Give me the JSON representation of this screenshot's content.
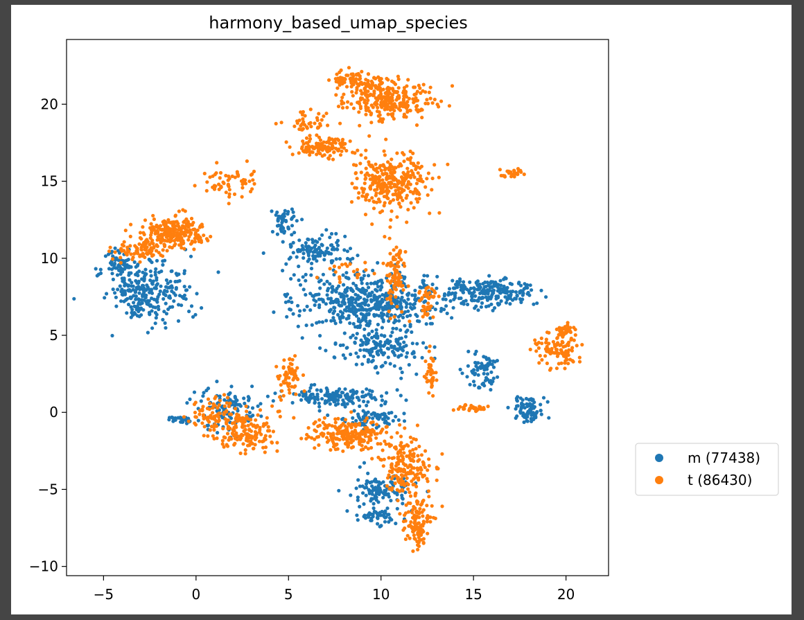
{
  "colors": {
    "background": "#454545",
    "canvas": "#ffffff",
    "series_m": "#1f77b4",
    "series_t": "#ff7f0e"
  },
  "chart_data": {
    "type": "scatter",
    "title": "harmony_based_umap_species",
    "xlabel": "",
    "ylabel": "",
    "xlim": [
      -7,
      22.3
    ],
    "ylim": [
      -10.6,
      24.2
    ],
    "xticks": [
      -5,
      0,
      5,
      10,
      15,
      20
    ],
    "yticks": [
      -10,
      -5,
      0,
      5,
      10,
      15,
      20
    ],
    "xtick_labels": [
      "−5",
      "0",
      "5",
      "10",
      "15",
      "20"
    ],
    "ytick_labels": [
      "−10",
      "−5",
      "0",
      "5",
      "10",
      "15",
      "20"
    ],
    "grid": false,
    "legend_position": "outside-right",
    "series": [
      {
        "name": "m (77438)",
        "color": "#1f77b4",
        "clusters": [
          {
            "center": [
              -2.5,
              7.8
            ],
            "spread": [
              1.9,
              1.9
            ],
            "n": 260
          },
          {
            "center": [
              -4.2,
              9.5
            ],
            "spread": [
              0.9,
              1.0
            ],
            "n": 60
          },
          {
            "center": [
              9.5,
              7.2
            ],
            "spread": [
              3.6,
              1.8
            ],
            "n": 520
          },
          {
            "center": [
              6.5,
              10.5
            ],
            "spread": [
              1.4,
              1.0
            ],
            "n": 110
          },
          {
            "center": [
              4.8,
              12.4
            ],
            "spread": [
              0.5,
              0.8
            ],
            "n": 50
          },
          {
            "center": [
              16.0,
              7.8
            ],
            "spread": [
              2.2,
              0.9
            ],
            "n": 220
          },
          {
            "center": [
              10.0,
              4.2
            ],
            "spread": [
              2.2,
              1.2
            ],
            "n": 160
          },
          {
            "center": [
              15.5,
              2.8
            ],
            "spread": [
              0.8,
              1.0
            ],
            "n": 70
          },
          {
            "center": [
              18.0,
              0.2
            ],
            "spread": [
              0.9,
              0.8
            ],
            "n": 80
          },
          {
            "center": [
              7.5,
              1.0
            ],
            "spread": [
              2.6,
              0.6
            ],
            "n": 150
          },
          {
            "center": [
              9.5,
              -0.4
            ],
            "spread": [
              1.5,
              0.5
            ],
            "n": 70
          },
          {
            "center": [
              10.0,
              -5.0
            ],
            "spread": [
              1.4,
              1.0
            ],
            "n": 110
          },
          {
            "center": [
              9.8,
              -6.8
            ],
            "spread": [
              1.0,
              0.5
            ],
            "n": 50
          },
          {
            "center": [
              1.8,
              0.2
            ],
            "spread": [
              1.6,
              1.4
            ],
            "n": 110
          },
          {
            "center": [
              -0.8,
              -0.5
            ],
            "spread": [
              0.6,
              0.2
            ],
            "n": 30
          }
        ]
      },
      {
        "name": "t (86430)",
        "color": "#ff7f0e",
        "clusters": [
          {
            "center": [
              -1.3,
              11.6
            ],
            "spread": [
              1.7,
              0.9
            ],
            "n": 240
          },
          {
            "center": [
              -3.0,
              10.4
            ],
            "spread": [
              1.2,
              0.5
            ],
            "n": 70
          },
          {
            "center": [
              10.5,
              20.3
            ],
            "spread": [
              2.0,
              1.2
            ],
            "n": 280
          },
          {
            "center": [
              8.5,
              21.5
            ],
            "spread": [
              1.3,
              0.6
            ],
            "n": 80
          },
          {
            "center": [
              6.8,
              17.2
            ],
            "spread": [
              1.5,
              0.6
            ],
            "n": 120
          },
          {
            "center": [
              10.5,
              15.0
            ],
            "spread": [
              2.0,
              1.6
            ],
            "n": 300
          },
          {
            "center": [
              10.8,
              9.0
            ],
            "spread": [
              0.5,
              2.0
            ],
            "n": 90
          },
          {
            "center": [
              12.5,
              7.2
            ],
            "spread": [
              0.4,
              1.0
            ],
            "n": 40
          },
          {
            "center": [
              12.7,
              2.6
            ],
            "spread": [
              0.3,
              1.2
            ],
            "n": 40
          },
          {
            "center": [
              19.5,
              4.0
            ],
            "spread": [
              1.2,
              1.0
            ],
            "n": 100
          },
          {
            "center": [
              20.0,
              5.4
            ],
            "spread": [
              0.6,
              0.3
            ],
            "n": 40
          },
          {
            "center": [
              8.2,
              -1.4
            ],
            "spread": [
              1.8,
              0.9
            ],
            "n": 220
          },
          {
            "center": [
              11.3,
              -3.5
            ],
            "spread": [
              1.2,
              2.0
            ],
            "n": 180
          },
          {
            "center": [
              12.0,
              -7.2
            ],
            "spread": [
              0.6,
              1.3
            ],
            "n": 110
          },
          {
            "center": [
              2.7,
              -1.2
            ],
            "spread": [
              1.6,
              1.3
            ],
            "n": 150
          },
          {
            "center": [
              1.0,
              -0.2
            ],
            "spread": [
              1.4,
              1.0
            ],
            "n": 80
          },
          {
            "center": [
              5.0,
              2.5
            ],
            "spread": [
              0.8,
              1.2
            ],
            "n": 60
          },
          {
            "center": [
              2.0,
              14.8
            ],
            "spread": [
              1.3,
              1.0
            ],
            "n": 60
          },
          {
            "center": [
              6.0,
              18.8
            ],
            "spread": [
              1.2,
              0.8
            ],
            "n": 40
          },
          {
            "center": [
              15.0,
              0.3
            ],
            "spread": [
              0.8,
              0.2
            ],
            "n": 30
          },
          {
            "center": [
              17.0,
              15.5
            ],
            "spread": [
              0.6,
              0.3
            ],
            "n": 25
          },
          {
            "center": [
              8.0,
              9.2
            ],
            "spread": [
              1.5,
              0.6
            ],
            "n": 20
          }
        ]
      }
    ]
  }
}
